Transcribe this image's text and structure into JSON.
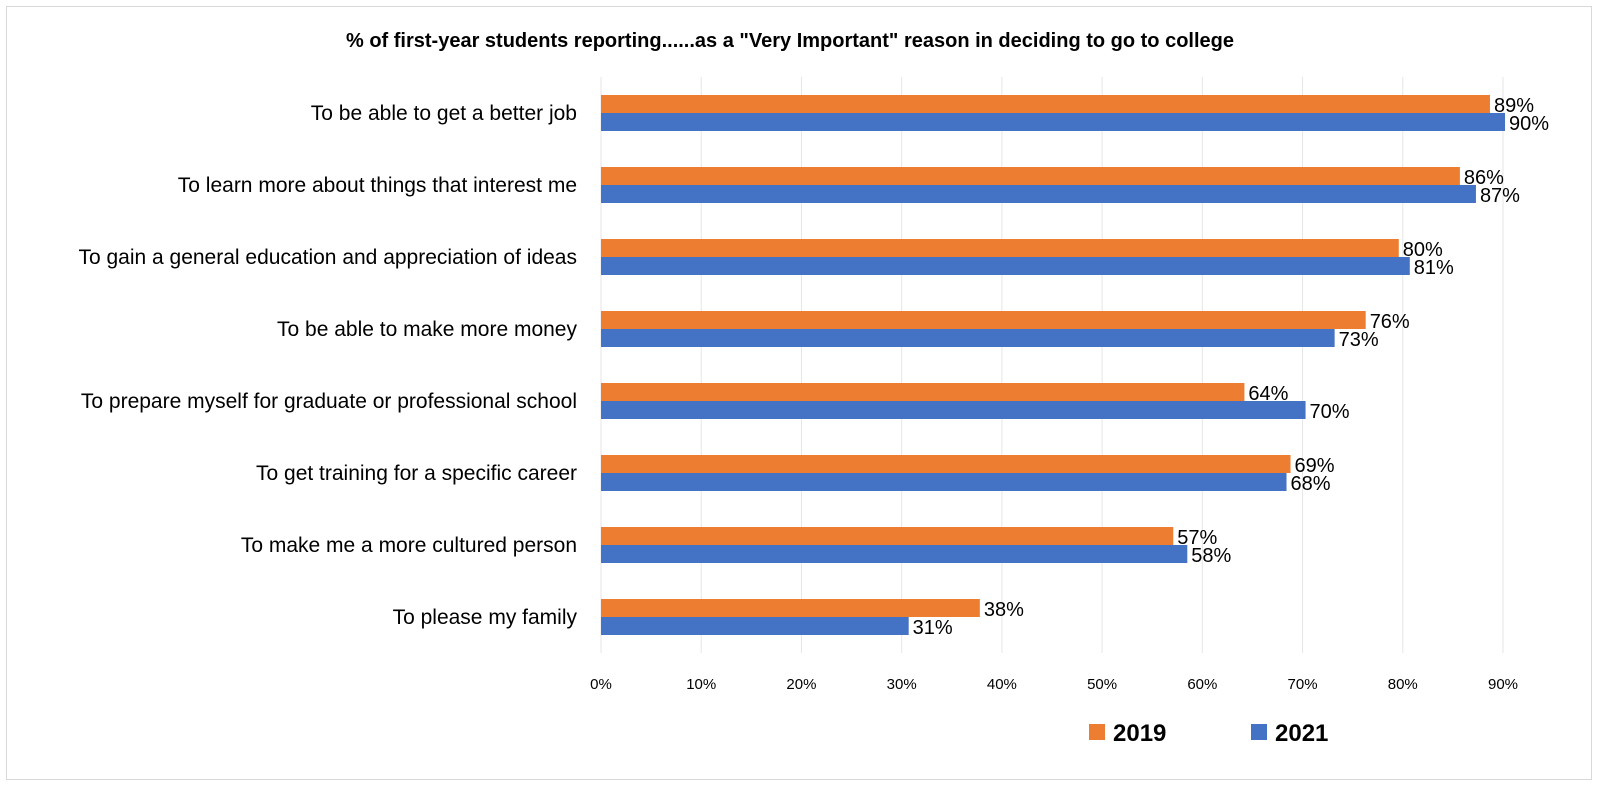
{
  "chart_data": {
    "type": "bar",
    "orientation": "horizontal",
    "title": "% of first-year students reporting......as  a \"Very Important\" reason in deciding to go to college",
    "categories": [
      "To be able to get a better job",
      "To learn more about things that interest me",
      "To gain a general education and appreciation of ideas",
      "To be able to make more money",
      "To prepare myself for graduate or professional school",
      "To get training for a specific career",
      "To make me a more cultured person",
      "To please my family"
    ],
    "series": [
      {
        "name": "2019",
        "color": "#ED7D31",
        "values": [
          88.7,
          85.7,
          79.6,
          76.3,
          64.2,
          68.8,
          57.1,
          37.8
        ],
        "labels": [
          "89%",
          "86%",
          "80%",
          "76%",
          "64%",
          "69%",
          "57%",
          "38%"
        ]
      },
      {
        "name": "2021",
        "color": "#4472C4",
        "values": [
          90.2,
          87.3,
          80.7,
          73.2,
          70.3,
          68.4,
          58.5,
          30.7
        ],
        "labels": [
          "90%",
          "87%",
          "81%",
          "73%",
          "70%",
          "68%",
          "58%",
          "31%"
        ]
      }
    ],
    "xlim": [
      0,
      90
    ],
    "xticks": [
      0,
      10,
      20,
      30,
      40,
      50,
      60,
      70,
      80,
      90
    ],
    "xtick_labels": [
      "0%",
      "10%",
      "20%",
      "30%",
      "40%",
      "50%",
      "60%",
      "70%",
      "80%",
      "90%"
    ],
    "grid": true,
    "legend_position": "bottom-right"
  }
}
